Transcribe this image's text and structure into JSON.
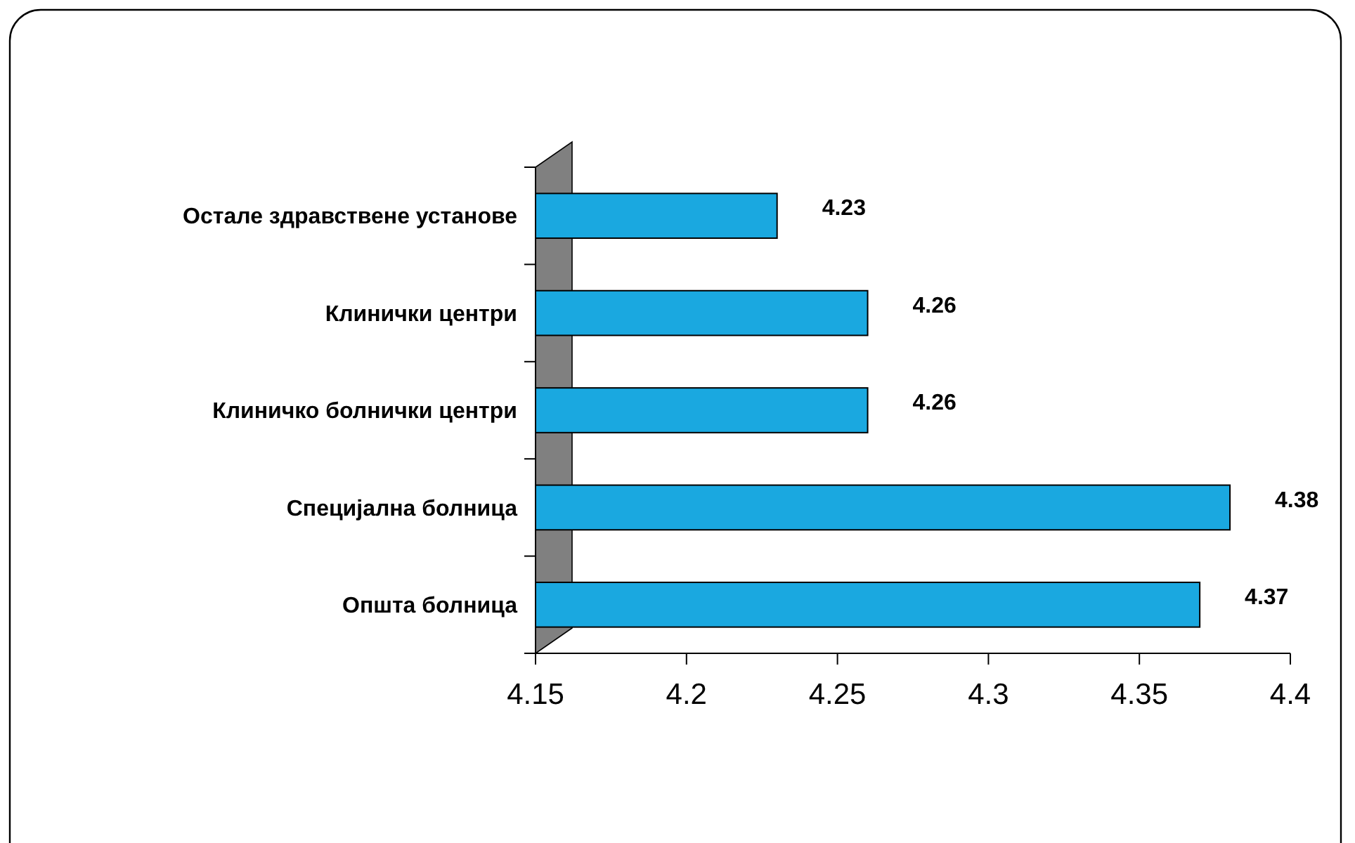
{
  "chart_data": {
    "type": "bar",
    "orientation": "horizontal",
    "categories": [
      "Остале здравствене установе",
      "Клинички центри",
      "Клиничко болнички центри",
      "Специјална болница",
      "Општа болница"
    ],
    "values": [
      4.23,
      4.26,
      4.26,
      4.38,
      4.37
    ],
    "color": "#1aa8e0",
    "xlim": [
      4.15,
      4.4
    ],
    "xticks": [
      4.15,
      4.2,
      4.25,
      4.3,
      4.35,
      4.4
    ],
    "data_labels": true
  }
}
